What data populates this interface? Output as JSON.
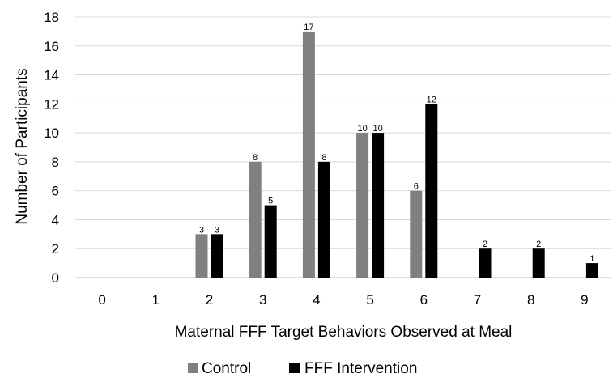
{
  "chart_data": {
    "type": "bar",
    "categories": [
      "0",
      "1",
      "2",
      "3",
      "4",
      "5",
      "6",
      "7",
      "8",
      "9"
    ],
    "series": [
      {
        "name": "Control",
        "color": "#808080",
        "values": [
          0,
          0,
          3,
          8,
          17,
          10,
          6,
          0,
          0,
          0
        ]
      },
      {
        "name": "FFF Intervention",
        "color": "#000000",
        "values": [
          0,
          0,
          3,
          5,
          8,
          10,
          12,
          2,
          2,
          1
        ]
      }
    ],
    "show_value_labels": true,
    "xlabel": "Maternal FFF Target Behaviors Observed at Meal",
    "ylabel": "Number of Participants",
    "ylim": [
      0,
      18
    ],
    "yticks": [
      0,
      2,
      4,
      6,
      8,
      10,
      12,
      14,
      16,
      18
    ],
    "grid": true,
    "legend_position": "bottom"
  }
}
